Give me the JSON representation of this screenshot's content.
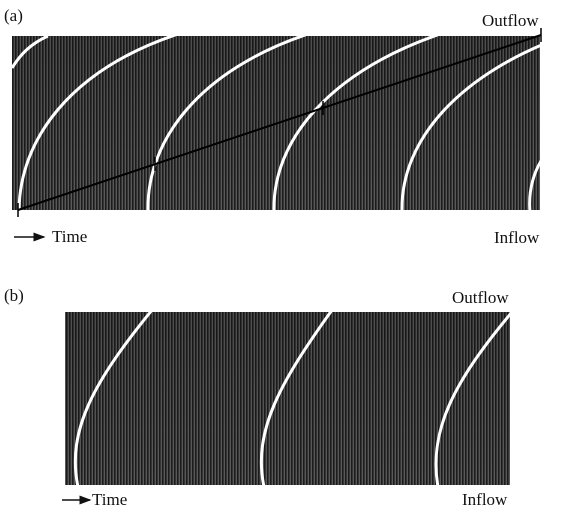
{
  "panels": [
    {
      "label": "(a)",
      "top_right": "Outflow",
      "bottom_left": "Time",
      "bottom_right": "Inflow"
    },
    {
      "label": "(b)",
      "top_right": "Outflow",
      "bottom_left": "Time",
      "bottom_right": "Inflow"
    }
  ]
}
